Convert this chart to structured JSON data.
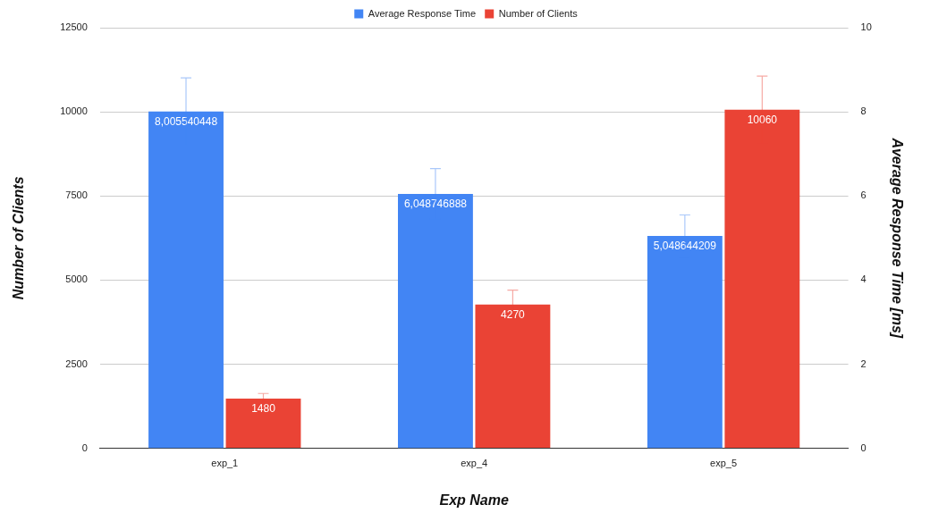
{
  "chart_data": {
    "type": "bar",
    "xlabel": "Exp Name",
    "ylabel": "Number of Clients",
    "y2label": "Average Response Time [ms]",
    "categories": [
      "exp_1",
      "exp_4",
      "exp_5"
    ],
    "series": [
      {
        "name": "Average Response Time",
        "color": "#4285f4",
        "axis": "y2",
        "values": [
          8.005540448,
          6.048746888,
          5.048644209
        ],
        "errors": [
          0.8,
          0.6,
          0.5
        ],
        "value_labels": [
          "8,005540448",
          "6,048746888",
          "5,048644209"
        ]
      },
      {
        "name": "Number of Clients",
        "color": "#ea4335",
        "values": [
          1480,
          4270,
          10060
        ],
        "errors": [
          150,
          430,
          1000
        ],
        "value_labels": [
          "1480",
          "4270",
          "10060"
        ]
      }
    ],
    "ylim": [
      0,
      12500
    ],
    "yticks": [
      0,
      2500,
      5000,
      7500,
      10000,
      12500
    ],
    "y2lim": [
      0,
      10
    ],
    "y2ticks": [
      0,
      2,
      4,
      6,
      8,
      10
    ],
    "grid": "y",
    "legend": "top"
  }
}
